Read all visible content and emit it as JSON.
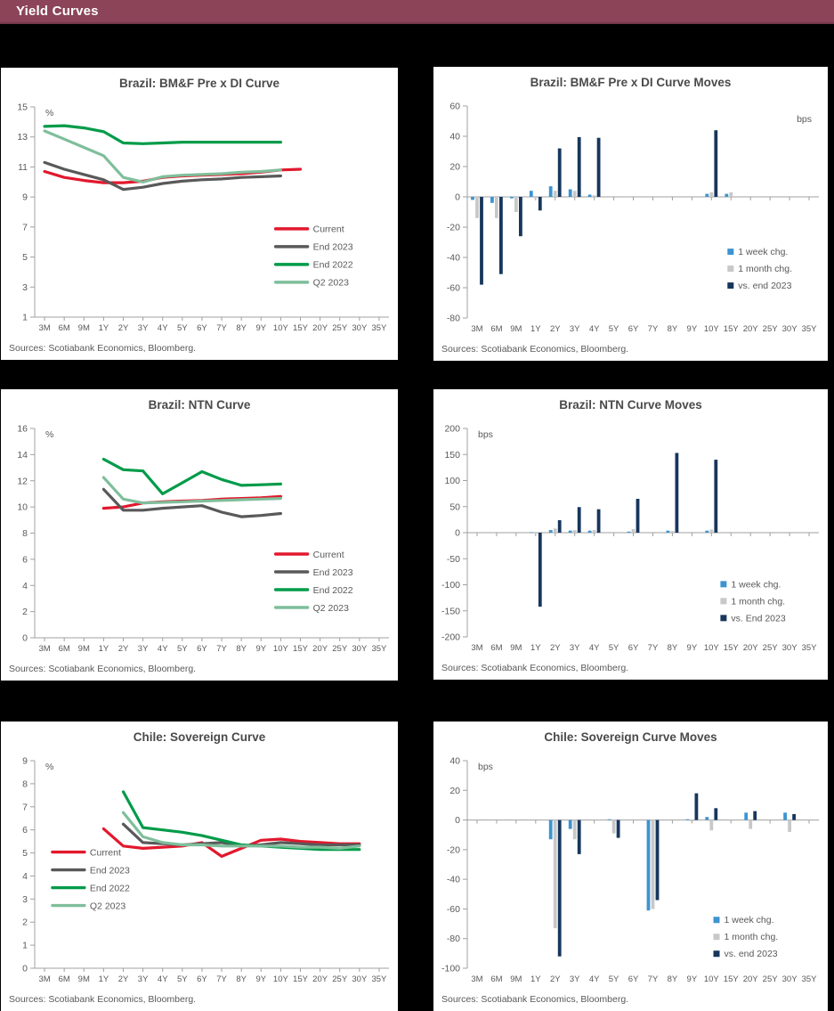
{
  "header": {
    "title": "Yield Curves",
    "bar_color": "#8B4458"
  },
  "colors": {
    "current_red": "#E2182D",
    "end2023_gray": "#595959",
    "end2022_green": "#009B49",
    "q2_2023_lightgreen": "#7FBE9B",
    "week_blue": "#3D94CF",
    "month_gray": "#C8C8C8",
    "vs_end_navy": "#17365D",
    "axis": "#A0A0A0",
    "tick_text": "#595959"
  },
  "chart_data": [
    {
      "type": "line",
      "title": "Brazil: BM&F Pre x DI Curve",
      "unit": "%",
      "unit_pos": "tl",
      "sources": "Sources: Scotiabank Economics, Bloomberg.",
      "ylim": [
        1,
        15
      ],
      "yticks": [
        15,
        13,
        11,
        9,
        7,
        5,
        3,
        1
      ],
      "categories": [
        "3M",
        "6M",
        "9M",
        "1Y",
        "2Y",
        "3Y",
        "4Y",
        "5Y",
        "6Y",
        "7Y",
        "8Y",
        "9Y",
        "10Y",
        "15Y",
        "20Y",
        "25Y",
        "30Y",
        "35Y"
      ],
      "legend": {
        "x": 0.68,
        "y": 0.58
      },
      "series": [
        {
          "name": "Current",
          "color": "#E2182D",
          "values": [
            10.7,
            10.3,
            10.1,
            9.95,
            9.95,
            10.05,
            10.3,
            10.4,
            10.45,
            10.5,
            10.55,
            10.65,
            10.8,
            10.85,
            null,
            null,
            null,
            null
          ]
        },
        {
          "name": "End 2023",
          "color": "#595959",
          "values": [
            11.3,
            10.85,
            10.5,
            10.15,
            9.5,
            9.65,
            9.9,
            10.05,
            10.15,
            10.2,
            10.3,
            10.35,
            10.4,
            null,
            null,
            null,
            null,
            null
          ]
        },
        {
          "name": "End 2022",
          "color": "#009B49",
          "values": [
            13.7,
            13.75,
            13.6,
            13.35,
            12.6,
            12.55,
            12.6,
            12.65,
            12.65,
            12.65,
            12.65,
            12.65,
            12.65,
            null,
            null,
            null,
            null,
            null
          ]
        },
        {
          "name": "Q2 2023",
          "color": "#7FBE9B",
          "values": [
            13.4,
            12.85,
            12.3,
            11.75,
            10.3,
            10.0,
            10.35,
            10.45,
            10.5,
            10.55,
            10.65,
            10.7,
            10.8,
            null,
            null,
            null,
            null,
            null
          ]
        }
      ]
    },
    {
      "type": "bar",
      "title": "Brazil: BM&F Pre x DI Curve Moves",
      "unit": "bps",
      "unit_pos": "tr",
      "sources": "Sources: Scotiabank Economics, Bloomberg.",
      "ylim": [
        -80,
        60
      ],
      "yticks": [
        60,
        40,
        20,
        0,
        -20,
        -40,
        -60,
        -80
      ],
      "categories": [
        "3M",
        "6M",
        "9M",
        "1Y",
        "2Y",
        "3Y",
        "4Y",
        "5Y",
        "6Y",
        "7Y",
        "8Y",
        "9Y",
        "10Y",
        "15Y",
        "20Y",
        "25Y",
        "30Y",
        "35Y"
      ],
      "legend": {
        "x": 0.74,
        "y": 0.7
      },
      "series": [
        {
          "name": "1 week chg.",
          "color": "#3D94CF",
          "values": [
            -2,
            -4,
            -1,
            4,
            7,
            5,
            1.5,
            0,
            0,
            0,
            0,
            0,
            2,
            2,
            0,
            0,
            0,
            0
          ]
        },
        {
          "name": "1 month chg.",
          "color": "#C8C8C8",
          "values": [
            -14,
            -14,
            -10,
            -1,
            4,
            4,
            1,
            0,
            0,
            0,
            0,
            0,
            3,
            3,
            0,
            0,
            0,
            0
          ]
        },
        {
          "name": "vs. end 2023",
          "color": "#17365D",
          "values": [
            -58,
            -51,
            -26,
            -9,
            32,
            39.5,
            39,
            0,
            0,
            0,
            0,
            0,
            44,
            0,
            0,
            0,
            0,
            0
          ]
        }
      ]
    },
    {
      "type": "line",
      "title": "Brazil: NTN Curve",
      "unit": "%",
      "unit_pos": "tl",
      "sources": "Sources: Scotiabank Economics, Bloomberg.",
      "ylim": [
        0,
        16
      ],
      "yticks": [
        16,
        14,
        12,
        10,
        8,
        6,
        4,
        2,
        0
      ],
      "categories": [
        "3M",
        "6M",
        "9M",
        "1Y",
        "2Y",
        "3Y",
        "4Y",
        "5Y",
        "6Y",
        "7Y",
        "8Y",
        "9Y",
        "10Y",
        "15Y",
        "20Y",
        "25Y",
        "30Y",
        "35Y"
      ],
      "legend": {
        "x": 0.68,
        "y": 0.6
      },
      "series": [
        {
          "name": "Current",
          "color": "#E2182D",
          "values": [
            null,
            null,
            null,
            9.9,
            10.0,
            10.3,
            10.4,
            10.45,
            10.5,
            10.6,
            10.65,
            10.7,
            10.8,
            null,
            null,
            null,
            null,
            null
          ]
        },
        {
          "name": "End 2023",
          "color": "#595959",
          "values": [
            null,
            null,
            null,
            11.35,
            9.75,
            9.75,
            9.9,
            10.0,
            10.1,
            9.6,
            9.25,
            9.35,
            9.5,
            null,
            null,
            null,
            null,
            null
          ]
        },
        {
          "name": "End 2022",
          "color": "#009B49",
          "values": [
            null,
            null,
            null,
            13.65,
            12.85,
            12.75,
            11.0,
            11.85,
            12.7,
            12.1,
            11.65,
            11.7,
            11.75,
            null,
            null,
            null,
            null,
            null
          ]
        },
        {
          "name": "Q2 2023",
          "color": "#7FBE9B",
          "values": [
            null,
            null,
            null,
            12.25,
            10.6,
            10.3,
            10.35,
            10.4,
            10.45,
            10.5,
            10.55,
            10.6,
            10.65,
            null,
            null,
            null,
            null,
            null
          ]
        }
      ]
    },
    {
      "type": "bar",
      "title": "Brazil: NTN Curve Moves",
      "unit": "bps",
      "unit_pos": "tl",
      "sources": "Sources: Scotiabank Economics, Bloomberg.",
      "ylim": [
        -200,
        200
      ],
      "yticks": [
        200,
        150,
        100,
        50,
        0,
        -50,
        -100,
        -150,
        -200
      ],
      "categories": [
        "3M",
        "6M",
        "9M",
        "1Y",
        "2Y",
        "3Y",
        "4Y",
        "5Y",
        "6Y",
        "7Y",
        "8Y",
        "9Y",
        "10Y",
        "15Y",
        "20Y",
        "25Y",
        "30Y",
        "35Y"
      ],
      "legend": {
        "x": 0.72,
        "y": 0.76
      },
      "series": [
        {
          "name": "1 week chg.",
          "color": "#3D94CF",
          "values": [
            0,
            0,
            0,
            1,
            5,
            4,
            4,
            0,
            2,
            0,
            4,
            0,
            4,
            0,
            0,
            0,
            0,
            0
          ]
        },
        {
          "name": "1 month chg.",
          "color": "#C8C8C8",
          "values": [
            0,
            0,
            0,
            -2,
            8,
            5,
            5,
            0,
            7,
            0,
            3,
            0,
            6,
            0,
            0,
            0,
            0,
            0
          ]
        },
        {
          "name": "vs. End 2023",
          "color": "#17365D",
          "values": [
            0,
            0,
            0,
            -142,
            24,
            49,
            45,
            0,
            65,
            0,
            153,
            0,
            140,
            0,
            0,
            0,
            0,
            0
          ]
        }
      ]
    },
    {
      "type": "line",
      "title": "Chile:  Sovereign Curve",
      "unit": "%",
      "unit_pos": "tl",
      "sources": "Sources: Scotiabank Economics, Bloomberg.",
      "ylim": [
        0,
        9
      ],
      "yticks": [
        9,
        8,
        7,
        6,
        5,
        4,
        3,
        2,
        1,
        0
      ],
      "categories": [
        "3M",
        "6M",
        "9M",
        "1Y",
        "2Y",
        "3Y",
        "4Y",
        "5Y",
        "6Y",
        "7Y",
        "8Y",
        "9Y",
        "10Y",
        "15Y",
        "20Y",
        "25Y",
        "30Y",
        "35Y"
      ],
      "legend": {
        "x": 0.05,
        "y": 0.44
      },
      "series": [
        {
          "name": "Current",
          "color": "#E2182D",
          "values": [
            null,
            null,
            null,
            6.05,
            5.3,
            5.2,
            5.25,
            5.3,
            5.45,
            4.85,
            5.2,
            5.55,
            5.6,
            5.5,
            5.45,
            5.4,
            5.4,
            null
          ]
        },
        {
          "name": "End 2023",
          "color": "#595959",
          "values": [
            null,
            null,
            null,
            null,
            6.25,
            5.45,
            5.4,
            5.35,
            5.4,
            5.45,
            5.3,
            5.35,
            5.45,
            5.4,
            5.35,
            5.35,
            5.35,
            null
          ]
        },
        {
          "name": "End 2022",
          "color": "#009B49",
          "values": [
            null,
            null,
            null,
            null,
            7.65,
            6.1,
            6.0,
            5.9,
            5.75,
            5.55,
            5.35,
            5.3,
            5.25,
            5.2,
            5.15,
            5.15,
            5.15,
            null
          ]
        },
        {
          "name": "Q2 2023",
          "color": "#7FBE9B",
          "values": [
            null,
            null,
            null,
            null,
            6.75,
            5.7,
            5.45,
            5.35,
            5.35,
            5.3,
            5.3,
            5.3,
            5.3,
            5.25,
            5.25,
            5.2,
            5.3,
            null
          ]
        }
      ]
    },
    {
      "type": "bar",
      "title": "Chile:  Sovereign Curve Moves",
      "unit": "bps",
      "unit_pos": "tl",
      "sources": "Sources: Scotiabank Economics, Bloomberg.",
      "ylim": [
        -100,
        40
      ],
      "yticks": [
        40,
        20,
        0,
        -20,
        -40,
        -60,
        -80,
        -100
      ],
      "categories": [
        "3M",
        "6M",
        "9M",
        "1Y",
        "2Y",
        "3Y",
        "4Y",
        "5Y",
        "6Y",
        "7Y",
        "8Y",
        "9Y",
        "10Y",
        "15Y",
        "20Y",
        "25Y",
        "30Y",
        "35Y"
      ],
      "legend": {
        "x": 0.7,
        "y": 0.78
      },
      "series": [
        {
          "name": "1 week chg.",
          "color": "#3D94CF",
          "values": [
            0,
            0,
            0,
            0,
            -13,
            -6,
            0,
            0.5,
            0,
            -61,
            0,
            0.5,
            2,
            0,
            5,
            0,
            5,
            0
          ]
        },
        {
          "name": "1 month chg.",
          "color": "#C8C8C8",
          "values": [
            0,
            0,
            0,
            0,
            -73,
            -13,
            0,
            -9,
            0,
            -60,
            0,
            -1,
            -7,
            0,
            -6,
            0,
            -8,
            0
          ]
        },
        {
          "name": "vs. end 2023",
          "color": "#17365D",
          "values": [
            0,
            0,
            0,
            0,
            -92,
            -23,
            0,
            -12,
            0,
            -54,
            0,
            18,
            8,
            0,
            6,
            0,
            4,
            0
          ]
        }
      ]
    }
  ]
}
